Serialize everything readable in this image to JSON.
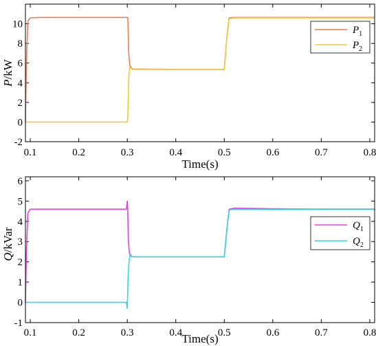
{
  "chart_data": [
    {
      "type": "line",
      "xlabel": "Time(s)",
      "ylabel": {
        "symbol": "P",
        "unit": "/kW"
      },
      "xlim": [
        0.09,
        0.81
      ],
      "ylim": [
        -2,
        12
      ],
      "xticks": [
        "0.1",
        "0.2",
        "0.3",
        "0.4",
        "0.5",
        "0.6",
        "0.7",
        "0.8"
      ],
      "yticks": [
        "-2",
        "0",
        "2",
        "4",
        "6",
        "8",
        "10"
      ],
      "legend_position": "right",
      "series": [
        {
          "name": {
            "symbol": "P",
            "sub": "1"
          },
          "color": "#F07C52",
          "x": [
            0.09,
            0.092,
            0.095,
            0.1,
            0.12,
            0.2,
            0.3,
            0.301,
            0.302,
            0.303,
            0.305,
            0.31,
            0.4,
            0.5,
            0.505,
            0.51,
            0.52,
            0.6,
            0.7,
            0.81
          ],
          "y": [
            0.0,
            6.0,
            10.3,
            10.6,
            10.65,
            10.65,
            10.65,
            10.6,
            9.0,
            7.0,
            5.8,
            5.4,
            5.35,
            5.35,
            8.5,
            10.6,
            10.65,
            10.65,
            10.65,
            10.65
          ]
        },
        {
          "name": {
            "symbol": "P",
            "sub": "2"
          },
          "color": "#F2C93A",
          "x": [
            0.09,
            0.3,
            0.301,
            0.302,
            0.303,
            0.305,
            0.31,
            0.4,
            0.5,
            0.505,
            0.51,
            0.52,
            0.6,
            0.7,
            0.81
          ],
          "y": [
            0.0,
            0.0,
            0.5,
            2.5,
            4.5,
            5.6,
            5.35,
            5.35,
            5.35,
            8.5,
            10.5,
            10.6,
            10.6,
            10.6,
            10.6
          ]
        }
      ]
    },
    {
      "type": "line",
      "xlabel": "Time(s)",
      "ylabel": {
        "symbol": "Q",
        "unit": "/kVar"
      },
      "xlim": [
        0.09,
        0.81
      ],
      "ylim": [
        -1,
        6.2
      ],
      "xticks": [
        "0.1",
        "0.2",
        "0.3",
        "0.4",
        "0.5",
        "0.6",
        "0.7",
        "0.8"
      ],
      "yticks": [
        "-1",
        "0",
        "1",
        "2",
        "3",
        "4",
        "5",
        "6"
      ],
      "legend_position": "right",
      "series": [
        {
          "name": {
            "symbol": "Q",
            "sub": "1"
          },
          "color": "#E840E0",
          "x": [
            0.09,
            0.092,
            0.095,
            0.1,
            0.12,
            0.2,
            0.298,
            0.3,
            0.301,
            0.302,
            0.304,
            0.306,
            0.31,
            0.4,
            0.5,
            0.505,
            0.51,
            0.52,
            0.6,
            0.7,
            0.81
          ],
          "y": [
            0.0,
            2.5,
            4.4,
            4.6,
            4.6,
            4.6,
            4.6,
            5.0,
            4.5,
            3.2,
            2.5,
            2.3,
            2.25,
            2.25,
            2.25,
            3.5,
            4.6,
            4.65,
            4.62,
            4.6,
            4.6
          ]
        },
        {
          "name": {
            "symbol": "Q",
            "sub": "2"
          },
          "color": "#33D6E6",
          "x": [
            0.09,
            0.298,
            0.3,
            0.301,
            0.302,
            0.304,
            0.306,
            0.31,
            0.4,
            0.5,
            0.505,
            0.51,
            0.52,
            0.6,
            0.7,
            0.81
          ],
          "y": [
            0.0,
            0.0,
            -0.3,
            0.6,
            1.5,
            2.1,
            2.4,
            2.25,
            2.25,
            2.25,
            3.5,
            4.55,
            4.6,
            4.58,
            4.6,
            4.6
          ]
        }
      ]
    }
  ]
}
